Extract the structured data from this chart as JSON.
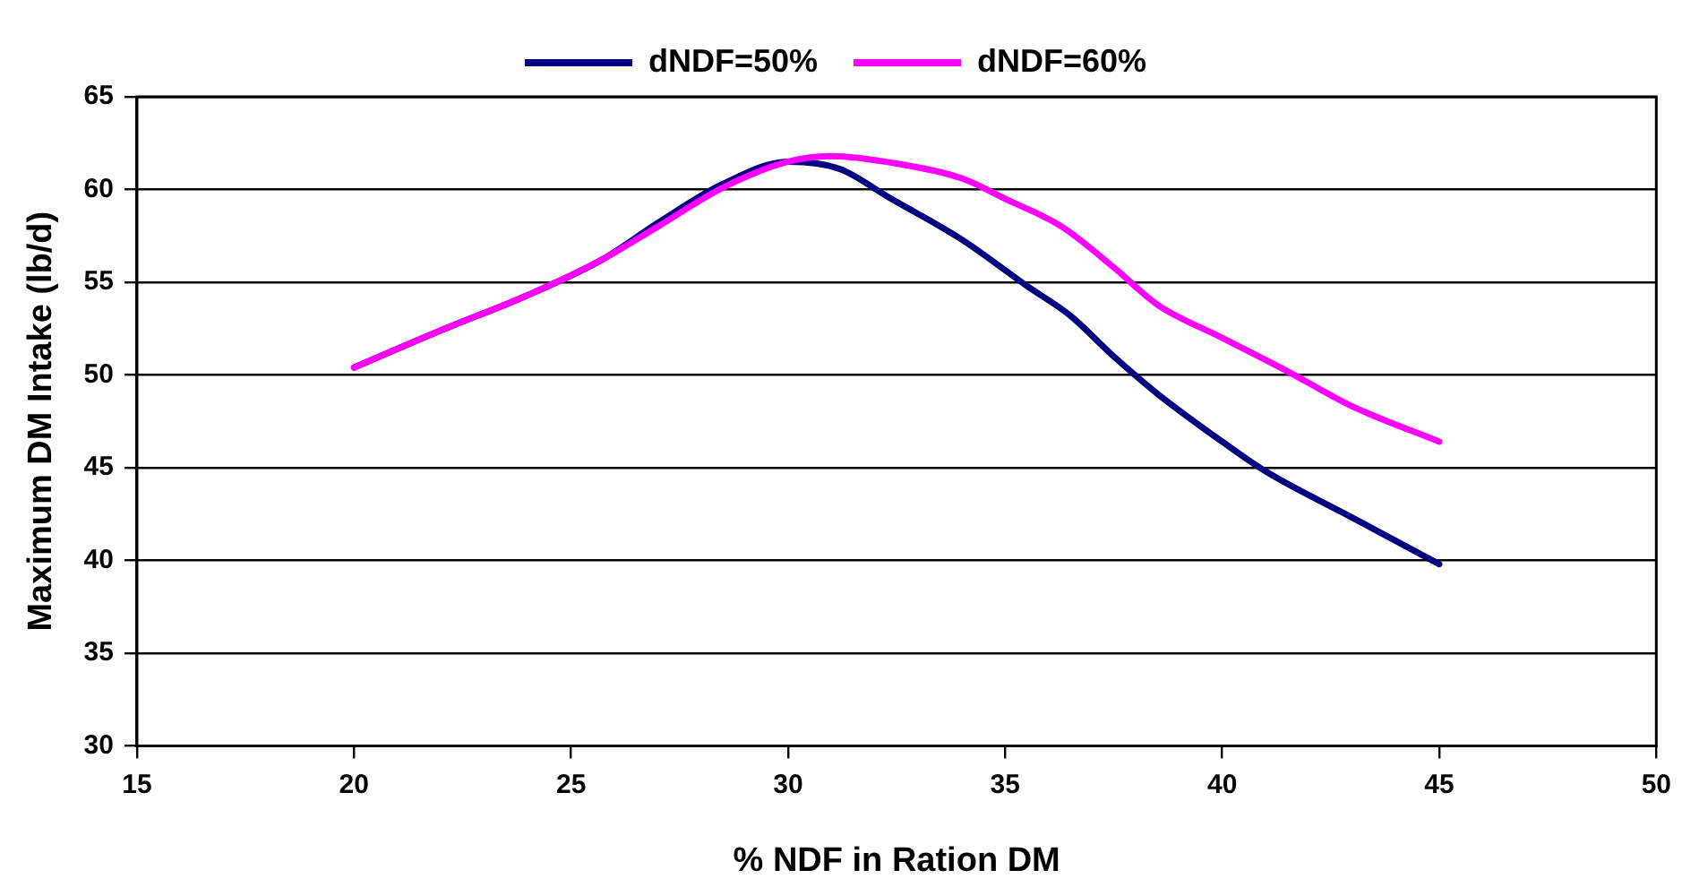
{
  "chart_data": {
    "type": "line",
    "xlabel": "% NDF in Ration DM",
    "ylabel": "Maximum DM Intake (lb/d)",
    "xlim": [
      15,
      50
    ],
    "xticks": [
      15,
      20,
      25,
      30,
      35,
      40,
      45,
      50
    ],
    "ylim": [
      30,
      65
    ],
    "yticks": [
      30,
      35,
      40,
      45,
      50,
      55,
      60,
      65
    ],
    "grid": "y",
    "legend": "top",
    "marker": "none",
    "line_style": "solid",
    "series": [
      {
        "name": "dNDF=50%",
        "color": "#000080",
        "x": [
          20,
          22,
          24,
          25.7,
          27,
          28.5,
          30,
          31.2,
          32.3,
          34,
          35.5,
          36.5,
          37.5,
          38.5,
          40,
          41,
          43,
          45
        ],
        "values": [
          50.4,
          52.4,
          54.3,
          56.2,
          58.2,
          60.3,
          61.5,
          61.1,
          59.6,
          57.3,
          54.8,
          53.2,
          51.0,
          49.0,
          46.4,
          44.8,
          42.3,
          39.8
        ]
      },
      {
        "name": "dNDF=60%",
        "color": "#ff00ff",
        "x": [
          20,
          22,
          24,
          25.7,
          27,
          28.5,
          30,
          31,
          32.5,
          34,
          35,
          36.3,
          37.5,
          38.5,
          40,
          41.5,
          43,
          45
        ],
        "values": [
          50.4,
          52.4,
          54.3,
          56.2,
          58.0,
          60.1,
          61.5,
          61.8,
          61.4,
          60.6,
          59.5,
          58.0,
          55.8,
          53.8,
          52.0,
          50.2,
          48.3,
          46.4
        ]
      }
    ]
  }
}
